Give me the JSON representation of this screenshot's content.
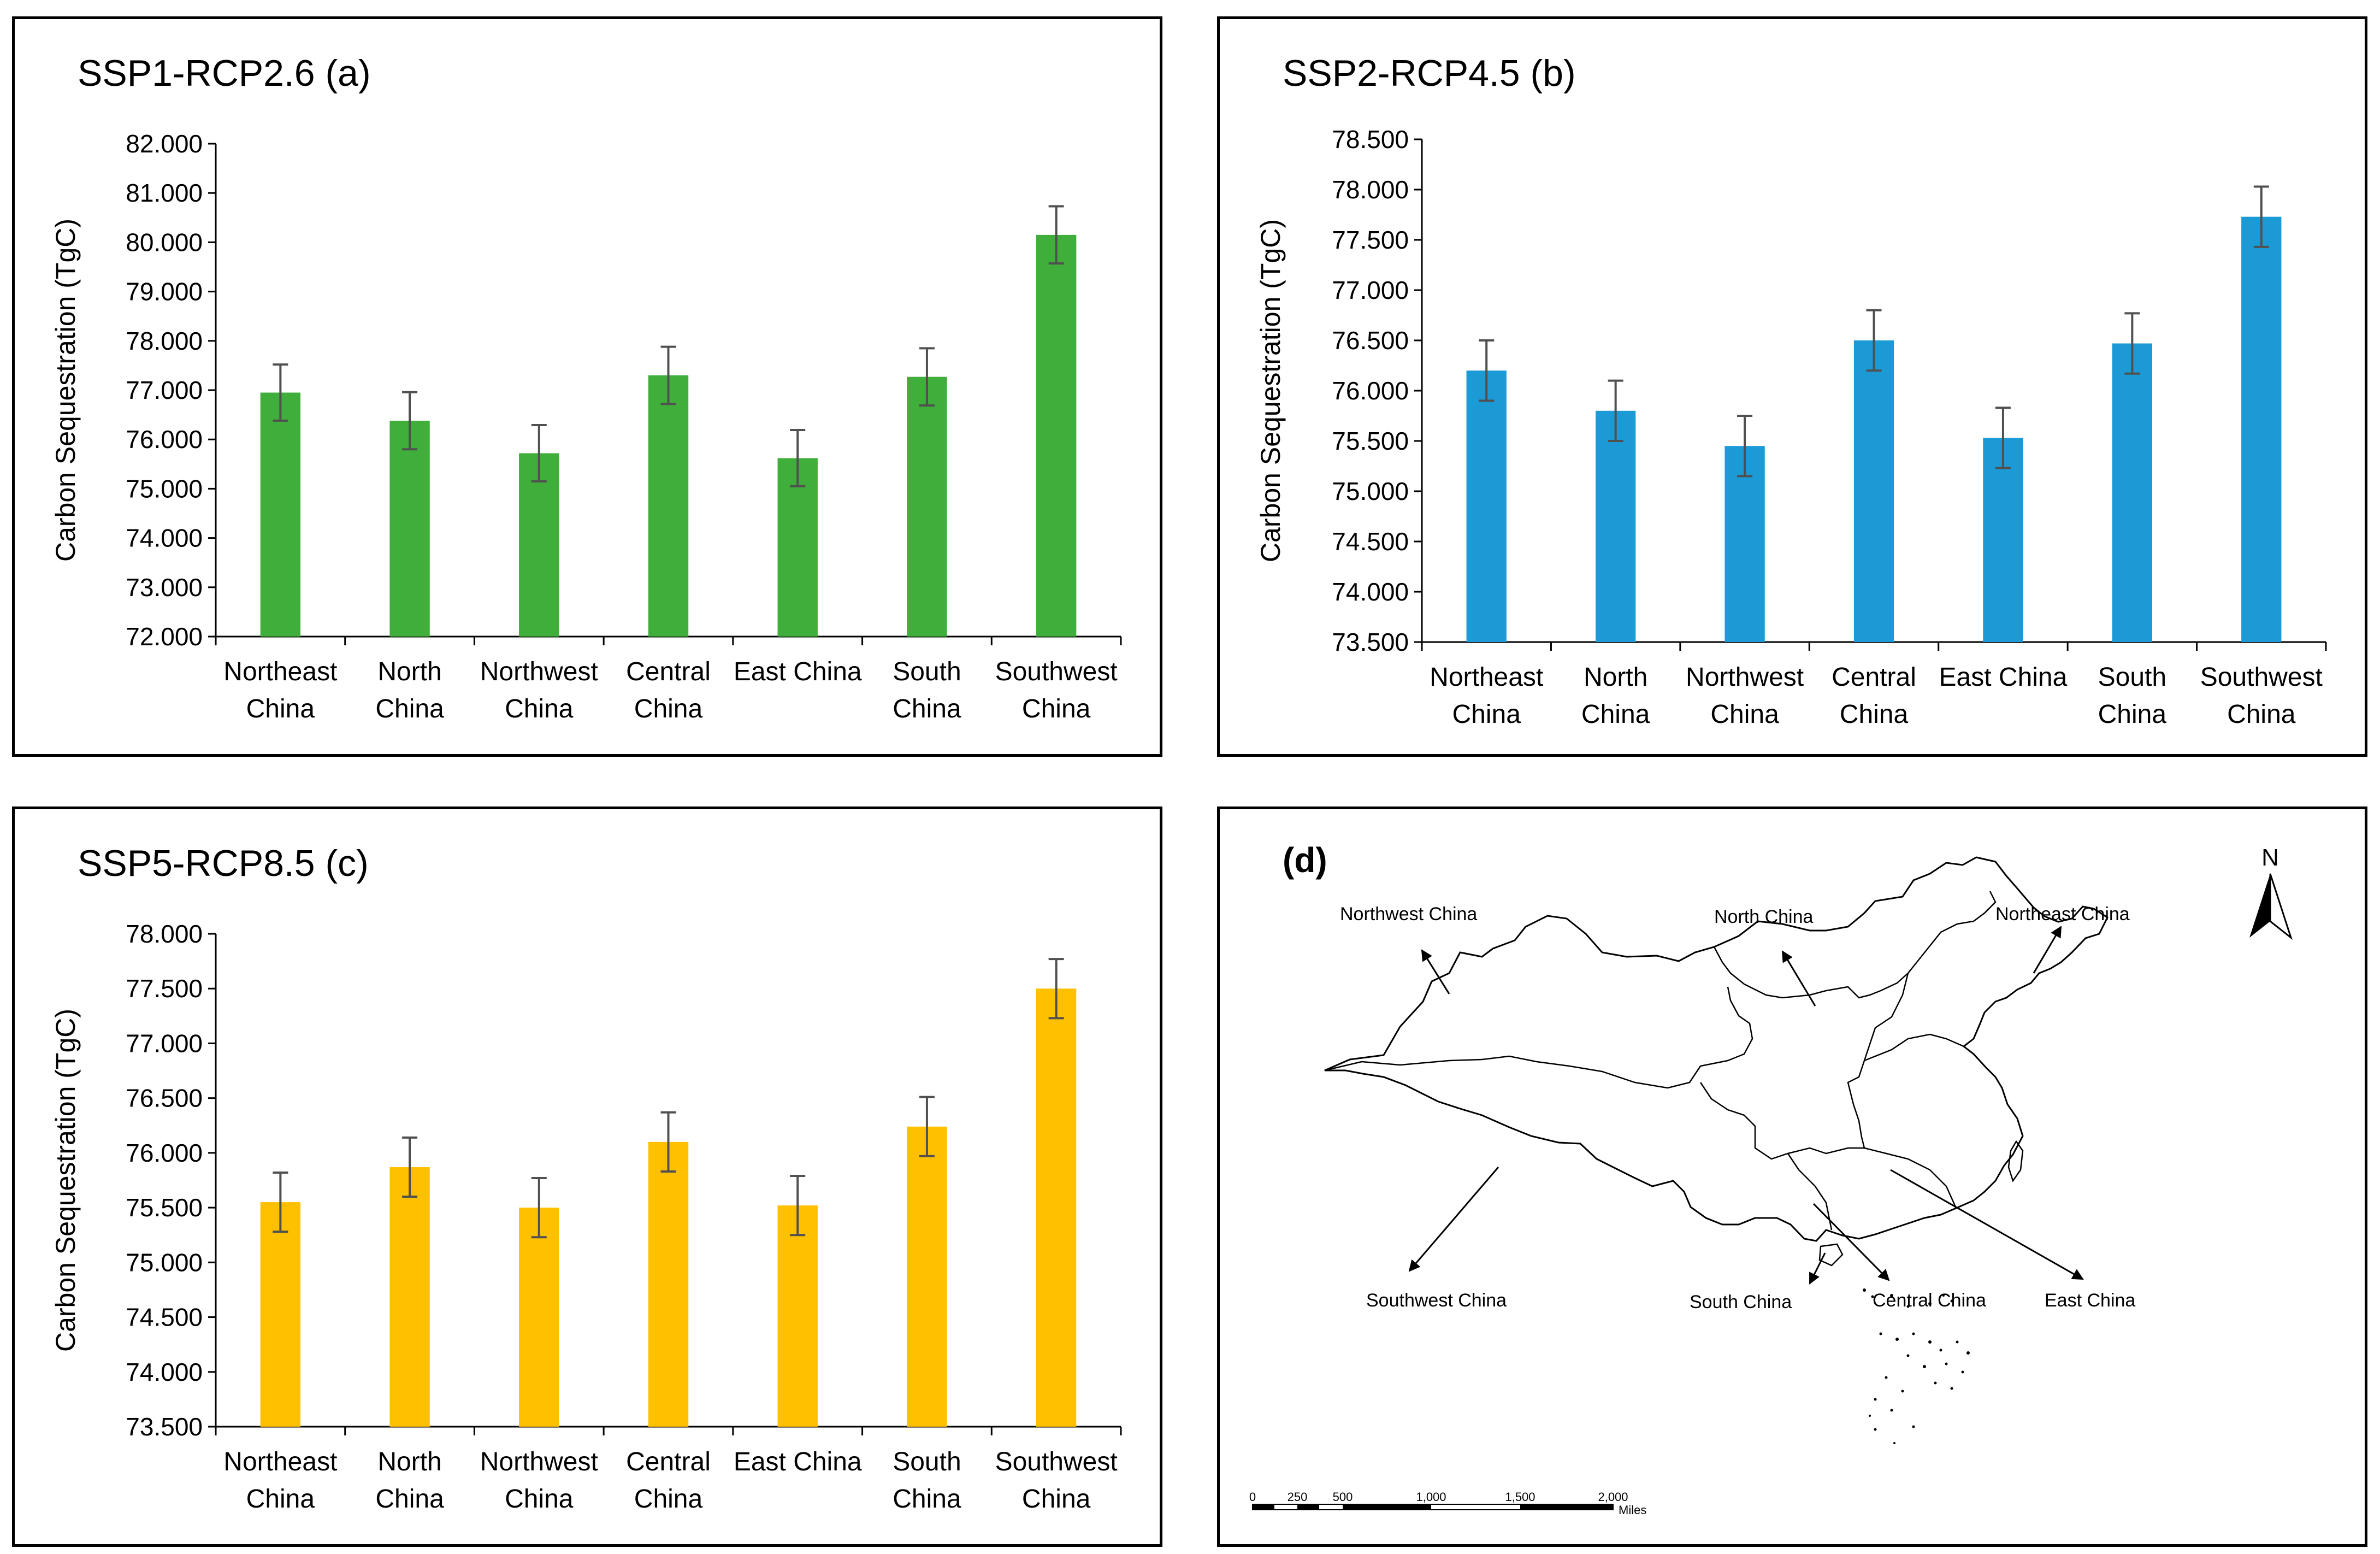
{
  "chart_data": [
    {
      "type": "bar",
      "panel": "a",
      "title": "SSP1-RCP2.6 (a)",
      "ylabel": "Carbon Sequestration (TgC)",
      "xlabel": "",
      "color": "#3fae3a",
      "ylim": [
        72,
        82
      ],
      "yticks": [
        72,
        73,
        74,
        75,
        76,
        77,
        78,
        79,
        80,
        81,
        82
      ],
      "ytick_labels": [
        "72.000",
        "73.000",
        "74.000",
        "75.000",
        "76.000",
        "77.000",
        "78.000",
        "79.000",
        "80.000",
        "81.000",
        "82.000"
      ],
      "categories": [
        [
          "Northeast",
          "China"
        ],
        [
          "North",
          "China"
        ],
        [
          "Northwest",
          "China"
        ],
        [
          "Central",
          "China"
        ],
        [
          "East China"
        ],
        [
          "South",
          "China"
        ],
        [
          "Southwest",
          "China"
        ]
      ],
      "values": [
        76.95,
        76.38,
        75.72,
        77.3,
        75.62,
        77.27,
        80.15
      ],
      "errors": [
        0.57,
        0.58,
        0.57,
        0.58,
        0.57,
        0.58,
        0.58
      ]
    },
    {
      "type": "bar",
      "panel": "b",
      "title": "SSP2-RCP4.5 (b)",
      "ylabel": "Carbon Sequestration (TgC)",
      "xlabel": "",
      "color": "#1b9ad6",
      "ylim": [
        73.5,
        78.5
      ],
      "yticks": [
        73.5,
        74,
        74.5,
        75,
        75.5,
        76,
        76.5,
        77,
        77.5,
        78,
        78.5
      ],
      "ytick_labels": [
        "73.500",
        "74.000",
        "74.500",
        "75.000",
        "75.500",
        "76.000",
        "76.500",
        "77.000",
        "77.500",
        "78.000",
        "78.500"
      ],
      "categories": [
        [
          "Northeast",
          "China"
        ],
        [
          "North",
          "China"
        ],
        [
          "Northwest",
          "China"
        ],
        [
          "Central",
          "China"
        ],
        [
          "East China"
        ],
        [
          "South",
          "China"
        ],
        [
          "Southwest",
          "China"
        ]
      ],
      "values": [
        76.2,
        75.8,
        75.45,
        76.5,
        75.53,
        76.47,
        77.73
      ],
      "errors": [
        0.3,
        0.3,
        0.3,
        0.3,
        0.3,
        0.3,
        0.3
      ]
    },
    {
      "type": "bar",
      "panel": "c",
      "title": "SSP5-RCP8.5 (c)",
      "ylabel": "Carbon Sequestration (TgC)",
      "xlabel": "",
      "color": "#ffc000",
      "ylim": [
        73.5,
        78
      ],
      "yticks": [
        73.5,
        74,
        74.5,
        75,
        75.5,
        76,
        76.5,
        77,
        77.5,
        78
      ],
      "ytick_labels": [
        "73.500",
        "74.000",
        "74.500",
        "75.000",
        "75.500",
        "76.000",
        "76.500",
        "77.000",
        "77.500",
        "78.000"
      ],
      "categories": [
        [
          "Northeast",
          "China"
        ],
        [
          "North",
          "China"
        ],
        [
          "Northwest",
          "China"
        ],
        [
          "Central",
          "China"
        ],
        [
          "East China"
        ],
        [
          "South",
          "China"
        ],
        [
          "Southwest",
          "China"
        ]
      ],
      "values": [
        75.55,
        75.87,
        75.5,
        76.1,
        75.52,
        76.24,
        77.5
      ],
      "errors": [
        0.27,
        0.27,
        0.27,
        0.27,
        0.27,
        0.27,
        0.27
      ]
    }
  ],
  "map": {
    "label": "(d)",
    "north": "N",
    "regions": [
      "Northwest China",
      "North China",
      "Northeast China",
      "Southwest China",
      "South China",
      "Central China",
      "East China"
    ],
    "scale_ticks": [
      "0",
      "250",
      "500",
      "1,000",
      "1,500",
      "2,000"
    ],
    "scale_unit": "Miles"
  }
}
